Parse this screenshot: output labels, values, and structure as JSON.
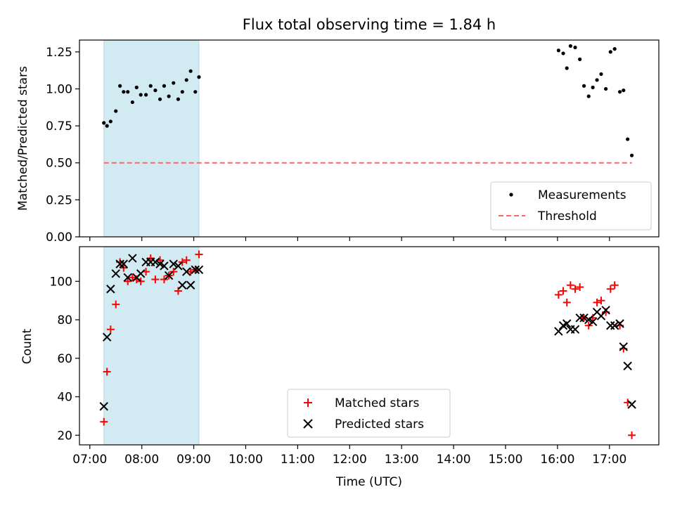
{
  "title": "Flux total observing time = 1.84 h",
  "x_tick_labels": [
    "07:00",
    "08:00",
    "09:00",
    "10:00",
    "11:00",
    "12:00",
    "13:00",
    "14:00",
    "15:00",
    "16:00",
    "17:00"
  ],
  "chart_data": [
    {
      "type": "scatter",
      "ylabel": "Matched/Predicted stars",
      "xlim": [
        6.8,
        17.95
      ],
      "ylim": [
        0,
        1.33
      ],
      "yticks": [
        "0.00",
        "0.25",
        "0.50",
        "0.75",
        "1.00",
        "1.25"
      ],
      "shaded_interval_hours": [
        7.27,
        9.1
      ],
      "shaded_color": "#add8e6",
      "legend": {
        "placement": "lower-right",
        "entries": [
          "Measurements",
          "Threshold"
        ]
      },
      "threshold": {
        "name": "Threshold",
        "value": 0.5,
        "x_range": [
          7.27,
          17.43
        ],
        "color": "#ff6666"
      },
      "measurements": {
        "name": "Measurements",
        "color": "#000000",
        "x": [
          7.27,
          7.33,
          7.4,
          7.5,
          7.58,
          7.65,
          7.73,
          7.82,
          7.9,
          7.98,
          8.08,
          8.17,
          8.26,
          8.35,
          8.43,
          8.52,
          8.61,
          8.7,
          8.78,
          8.86,
          8.94,
          9.03,
          9.1,
          16.02,
          16.11,
          16.18,
          16.25,
          16.34,
          16.43,
          16.51,
          16.6,
          16.68,
          16.76,
          16.84,
          16.93,
          17.02,
          17.1,
          17.2,
          17.27,
          17.35,
          17.43
        ],
        "y": [
          0.77,
          0.75,
          0.78,
          0.85,
          1.02,
          0.98,
          0.98,
          0.91,
          1.01,
          0.96,
          0.96,
          1.02,
          0.99,
          0.93,
          1.02,
          0.95,
          1.04,
          0.93,
          0.98,
          1.06,
          1.12,
          0.98,
          1.08,
          1.26,
          1.24,
          1.14,
          1.29,
          1.28,
          1.2,
          1.02,
          0.95,
          1.01,
          1.06,
          1.1,
          1.0,
          1.25,
          1.27,
          0.98,
          0.99,
          0.66,
          0.55
        ]
      }
    },
    {
      "type": "scatter",
      "xlabel": "Time (UTC)",
      "ylabel": "Count",
      "xlim": [
        6.8,
        17.95
      ],
      "ylim": [
        15,
        118
      ],
      "yticks": [
        "20",
        "40",
        "60",
        "80",
        "100"
      ],
      "shaded_interval_hours": [
        7.27,
        9.1
      ],
      "shaded_color": "#add8e6",
      "legend": {
        "placement": "lower-center",
        "entries": [
          "Matched stars",
          "Predicted stars"
        ]
      },
      "series": [
        {
          "name": "Matched stars",
          "marker": "plus",
          "color": "#ff0000",
          "x": [
            7.27,
            7.33,
            7.4,
            7.5,
            7.58,
            7.65,
            7.73,
            7.82,
            7.9,
            7.98,
            8.08,
            8.17,
            8.26,
            8.35,
            8.43,
            8.52,
            8.61,
            8.7,
            8.78,
            8.86,
            8.94,
            9.03,
            9.1,
            16.02,
            16.11,
            16.18,
            16.25,
            16.34,
            16.43,
            16.51,
            16.6,
            16.68,
            16.76,
            16.84,
            16.93,
            17.02,
            17.1,
            17.2,
            17.27,
            17.35,
            17.43
          ],
          "y": [
            27,
            53,
            75,
            88,
            110,
            107,
            100,
            102,
            101,
            100,
            105,
            112,
            101,
            111,
            101,
            103,
            105,
            95,
            110,
            111,
            105,
            106,
            114,
            93,
            95,
            89,
            98,
            96,
            97,
            81,
            77,
            81,
            89,
            90,
            84,
            96,
            98,
            77,
            65,
            37,
            20
          ]
        },
        {
          "name": "Predicted stars",
          "marker": "x",
          "color": "#000000",
          "x": [
            7.27,
            7.33,
            7.4,
            7.5,
            7.58,
            7.65,
            7.73,
            7.82,
            7.9,
            7.98,
            8.08,
            8.17,
            8.26,
            8.35,
            8.43,
            8.52,
            8.61,
            8.7,
            8.78,
            8.86,
            8.94,
            9.03,
            9.1,
            16.02,
            16.11,
            16.18,
            16.25,
            16.34,
            16.43,
            16.51,
            16.6,
            16.68,
            16.76,
            16.84,
            16.93,
            17.02,
            17.1,
            17.2,
            17.27,
            17.35,
            17.43
          ],
          "y": [
            35,
            71,
            96,
            104,
            109,
            109,
            102,
            112,
            102,
            104,
            110,
            110,
            110,
            109,
            108,
            103,
            109,
            108,
            98,
            105,
            98,
            106,
            106,
            74,
            77,
            78,
            75,
            75,
            81,
            81,
            80,
            79,
            84,
            82,
            85,
            77,
            77,
            78,
            66,
            56,
            36
          ]
        }
      ]
    }
  ]
}
